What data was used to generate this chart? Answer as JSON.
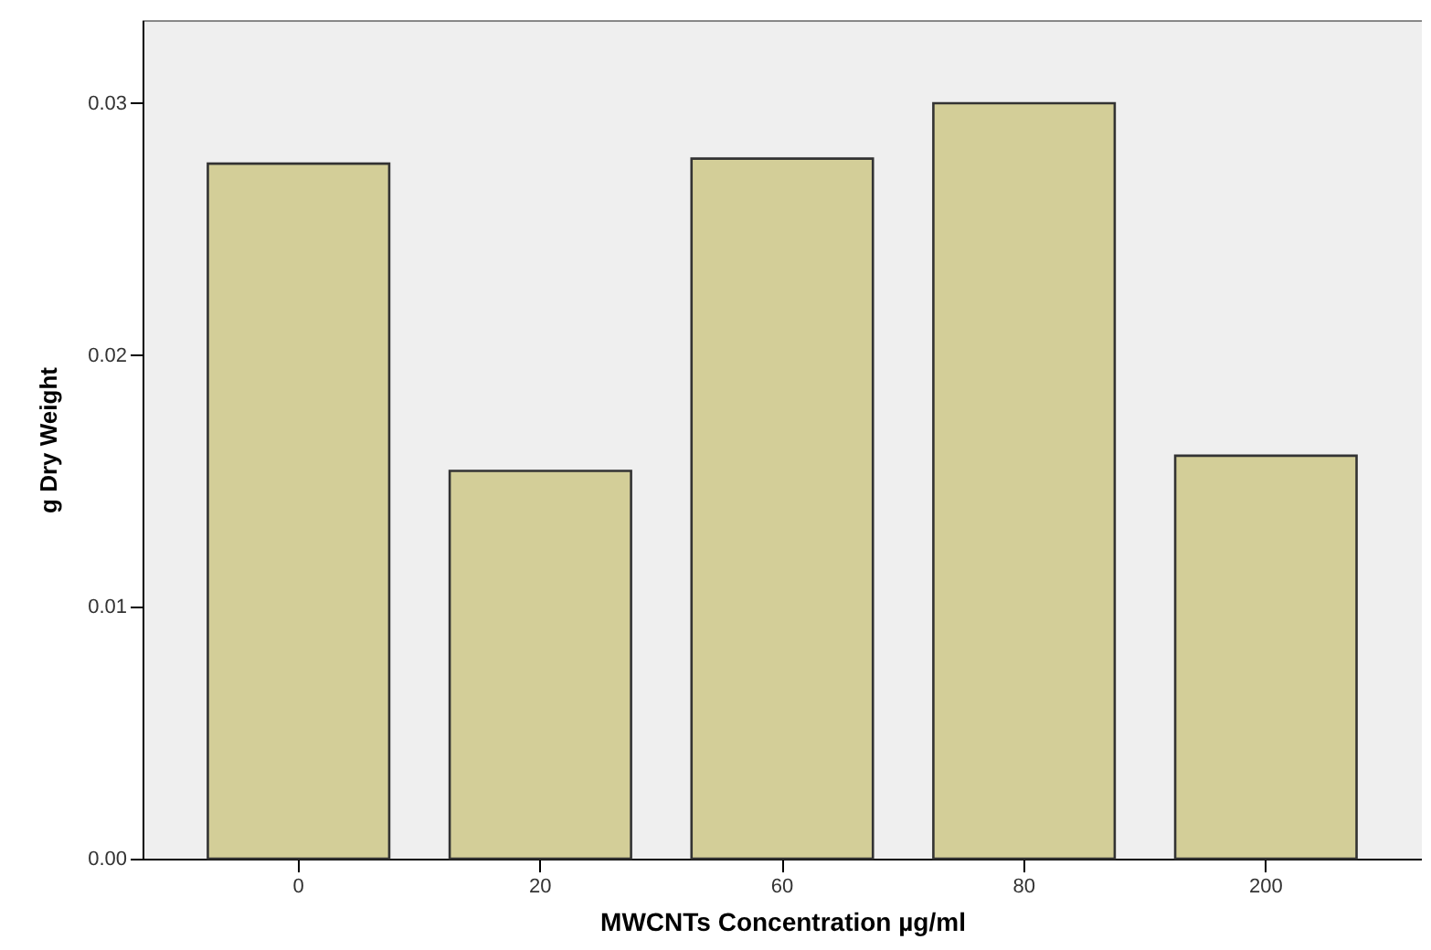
{
  "chart_data": {
    "type": "bar",
    "xlabel": "MWCNTs Concentration µg/ml",
    "ylabel": "g Dry Weight",
    "categories": [
      "0",
      "20",
      "60",
      "80",
      "200"
    ],
    "values": [
      0.0276,
      0.0154,
      0.0278,
      0.03,
      0.016
    ],
    "color": "#d3ce98",
    "ylim": [
      0,
      0.0333
    ],
    "yticks": [
      {
        "value": 0,
        "label": "0.00"
      },
      {
        "value": 0.01,
        "label": "0.01"
      },
      {
        "value": 0.02,
        "label": "0.02"
      },
      {
        "value": 0.03,
        "label": "0.03"
      }
    ],
    "grid": false
  }
}
